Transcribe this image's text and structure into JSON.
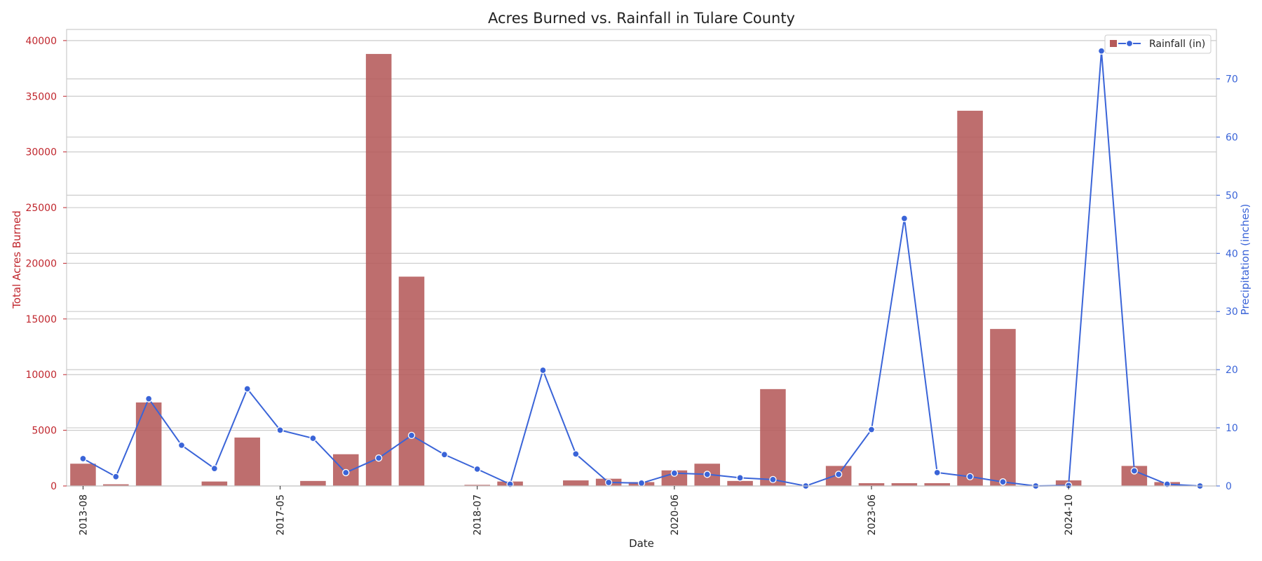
{
  "chart_data": {
    "type": "bar+line",
    "title": "Acres Burned vs. Rainfall in Tulare County",
    "xlabel": "Date",
    "ylabel_left": "Total Acres Burned",
    "ylabel_right": "Precipitation (inches)",
    "ylim_left": [
      0,
      41000
    ],
    "ylim_right": [
      0,
      78.5
    ],
    "yticks_left": [
      0,
      5000,
      10000,
      15000,
      20000,
      25000,
      30000,
      35000,
      40000
    ],
    "yticks_right": [
      0,
      10,
      20,
      30,
      40,
      50,
      60,
      70
    ],
    "xtick_labels": [
      {
        "index": 0,
        "label": "2013-08"
      },
      {
        "index": 6,
        "label": "2017-05"
      },
      {
        "index": 12,
        "label": "2018-07"
      },
      {
        "index": 18,
        "label": "2020-06"
      },
      {
        "index": 24,
        "label": "2023-06"
      },
      {
        "index": 30,
        "label": "2024-10"
      }
    ],
    "n_categories": 35,
    "series": [
      {
        "name": "",
        "kind": "bar",
        "color": "#b55a5a",
        "values": [
          2000,
          150,
          7500,
          0,
          400,
          4350,
          0,
          450,
          2850,
          38800,
          18800,
          0,
          100,
          400,
          0,
          500,
          650,
          350,
          1400,
          2000,
          450,
          8700,
          0,
          1800,
          250,
          250,
          250,
          33700,
          14100,
          0,
          500,
          0,
          1800,
          350,
          0
        ]
      },
      {
        "name": "Rainfall (in)",
        "kind": "line",
        "color": "#3a64d8",
        "values": [
          4.7,
          1.6,
          15.0,
          7.0,
          3.0,
          16.7,
          9.6,
          8.2,
          2.3,
          4.8,
          8.7,
          5.4,
          2.9,
          0.3,
          19.9,
          5.5,
          0.6,
          0.5,
          2.2,
          2.0,
          1.4,
          1.1,
          0.0,
          2.0,
          9.7,
          46.0,
          2.3,
          1.6,
          0.7,
          0.0,
          0.1,
          74.8,
          2.6,
          0.3,
          0.0
        ]
      }
    ],
    "legend_position": "upper right",
    "grid": true
  },
  "colors": {
    "bar": "#b55a5a",
    "line": "#3a64d8",
    "left_axis": "#c0262d",
    "right_axis": "#3a64d8",
    "grid": "#cccccc",
    "frame": "#cccccc"
  }
}
